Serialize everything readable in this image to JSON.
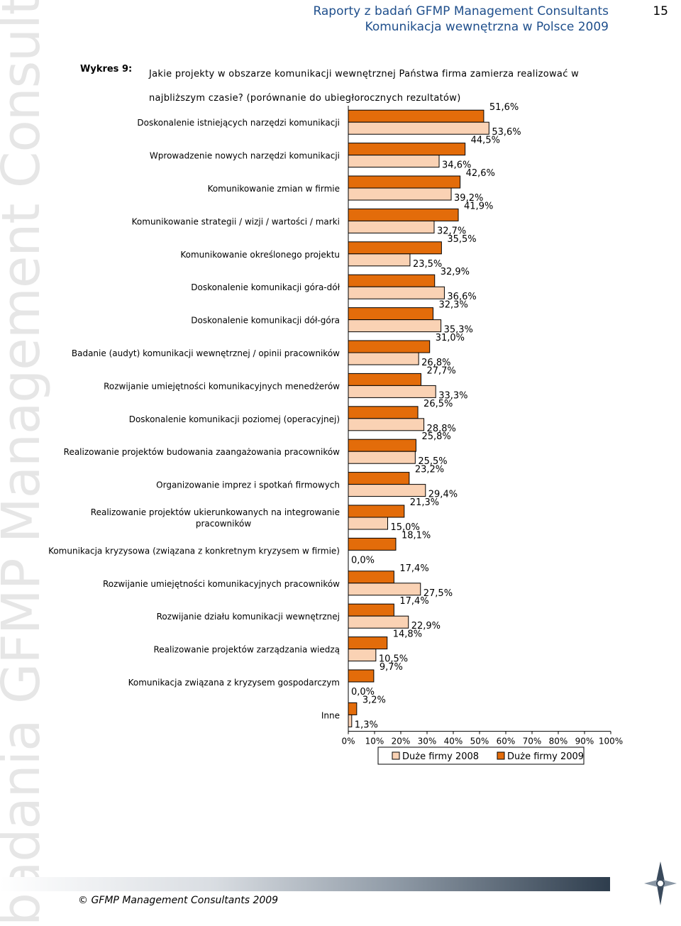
{
  "watermark": "badania GFMP Management Consultants",
  "header": {
    "line1": "Raporty z badań GFMP Management Consultants",
    "line2": "Komunikacja wewnętrzna w Polsce 2009",
    "page_number": "15"
  },
  "figure": {
    "label": "Wykres 9:",
    "title": "Jakie projekty w obszarze komunikacji wewnętrznej Państwa firma zamierza realizować w najbliższym czasie? (porównanie do ubiegłorocznych rezultatów)"
  },
  "chart_data": {
    "type": "bar",
    "orientation": "horizontal",
    "categories": [
      [
        "Doskonalenie istniejących narzędzi komunikacji"
      ],
      [
        "Wprowadzenie nowych narzędzi komunikacji"
      ],
      [
        "Komunikowanie zmian w firmie"
      ],
      [
        "Komunikowanie strategii / wizji / wartości / marki"
      ],
      [
        "Komunikowanie określonego projektu"
      ],
      [
        "Doskonalenie komunikacji góra-dół"
      ],
      [
        "Doskonalenie komunikacji dół-góra"
      ],
      [
        "Badanie (audyt) komunikacji wewnętrznej / opinii pracowników"
      ],
      [
        "Rozwijanie umiejętności komunikacyjnych menedżerów"
      ],
      [
        "Doskonalenie komunikacji poziomej (operacyjnej)"
      ],
      [
        "Realizowanie projektów budowania zaangażowania pracowników"
      ],
      [
        "Organizowanie imprez i spotkań firmowych"
      ],
      [
        "Realizowanie projektów ukierunkowanych na integrowanie",
        "pracowników"
      ],
      [
        "Komunikacja kryzysowa (związana z konkretnym kryzysem w firmie)"
      ],
      [
        "Rozwijanie umiejętności komunikacyjnych pracowników"
      ],
      [
        "Rozwijanie działu komunikacji wewnętrznej"
      ],
      [
        "Realizowanie projektów zarządzania wiedzą"
      ],
      [
        "Komunikacja związana z kryzysem gospodarczym"
      ],
      [
        "Inne"
      ]
    ],
    "series": [
      {
        "name": "Duże firmy 2009",
        "color": "#e36c0a",
        "values": [
          51.6,
          44.5,
          42.6,
          41.9,
          35.5,
          32.9,
          32.3,
          31.0,
          27.7,
          26.5,
          25.8,
          23.2,
          21.3,
          18.1,
          17.4,
          17.4,
          14.8,
          9.7,
          3.2
        ],
        "labels": [
          "51,6%",
          "44,5%",
          "42,6%",
          "41,9%",
          "35,5%",
          "32,9%",
          "32,3%",
          "31,0%",
          "27,7%",
          "26,5%",
          "25,8%",
          "23,2%",
          "21,3%",
          "18,1%",
          "17,4%",
          "17,4%",
          "14,8%",
          "9,7%",
          "3,2%"
        ]
      },
      {
        "name": "Duże firmy 2008",
        "color": "#fad2b4",
        "values": [
          53.6,
          34.6,
          39.2,
          32.7,
          23.5,
          36.6,
          35.3,
          26.8,
          33.3,
          28.8,
          25.5,
          29.4,
          15.0,
          0.0,
          27.5,
          22.9,
          10.5,
          0.0,
          1.3
        ],
        "labels": [
          "53,6%",
          "34,6%",
          "39,2%",
          "32,7%",
          "23,5%",
          "36,6%",
          "35,3%",
          "26,8%",
          "33,3%",
          "28,8%",
          "25,5%",
          "29,4%",
          "15,0%",
          "0,0%",
          "27,5%",
          "22,9%",
          "10,5%",
          "0,0%",
          "1,3%"
        ]
      }
    ],
    "x_ticks": [
      "0%",
      "10%",
      "20%",
      "30%",
      "40%",
      "50%",
      "60%",
      "70%",
      "80%",
      "90%",
      "100%"
    ],
    "xlim": [
      0,
      100
    ],
    "legend": [
      "Duże firmy 2008",
      "Duże firmy 2009"
    ],
    "legend_position": "bottom"
  },
  "footer": {
    "text": "© GFMP Management Consultants 2009"
  }
}
